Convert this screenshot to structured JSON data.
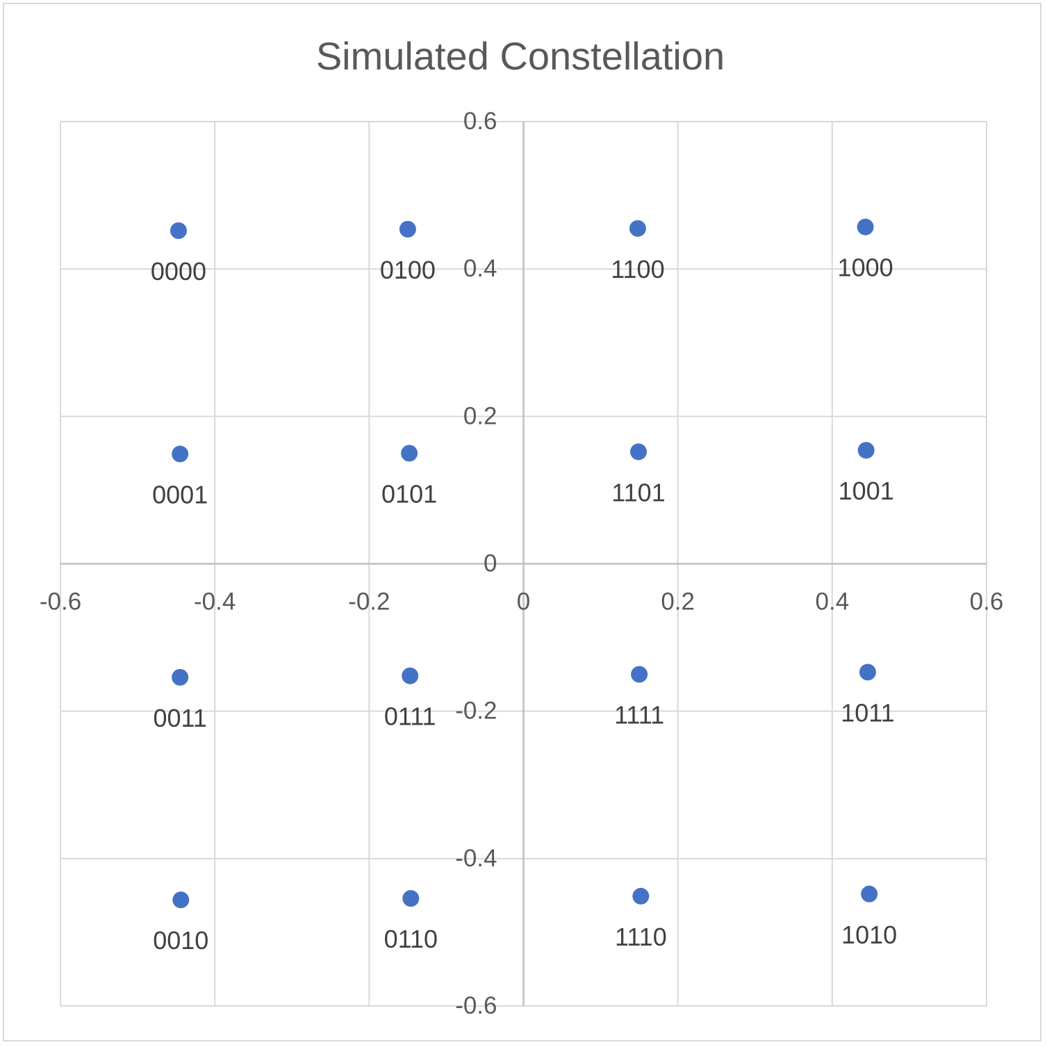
{
  "chart_data": {
    "type": "scatter",
    "title": "Simulated Constellation",
    "xlabel": "",
    "ylabel": "",
    "xlim": [
      -0.6,
      0.6
    ],
    "ylim": [
      -0.6,
      0.6
    ],
    "x_ticks": [
      "-0.6",
      "-0.4",
      "-0.2",
      "0",
      "0.2",
      "0.4",
      "0.6"
    ],
    "y_ticks": [
      "-0.6",
      "-0.4",
      "-0.2",
      "0",
      "0.2",
      "0.4",
      "0.6"
    ],
    "grid": true,
    "marker_color": "#4472C4",
    "points": [
      {
        "x": -0.447,
        "y": 0.452,
        "label": "0000"
      },
      {
        "x": -0.15,
        "y": 0.454,
        "label": "0100"
      },
      {
        "x": 0.148,
        "y": 0.455,
        "label": "1100"
      },
      {
        "x": 0.443,
        "y": 0.457,
        "label": "1000"
      },
      {
        "x": -0.445,
        "y": 0.149,
        "label": "0001"
      },
      {
        "x": -0.148,
        "y": 0.15,
        "label": "0101"
      },
      {
        "x": 0.149,
        "y": 0.152,
        "label": "1101"
      },
      {
        "x": 0.444,
        "y": 0.154,
        "label": "1001"
      },
      {
        "x": -0.445,
        "y": -0.154,
        "label": "0011"
      },
      {
        "x": -0.147,
        "y": -0.152,
        "label": "0111"
      },
      {
        "x": 0.15,
        "y": -0.15,
        "label": "1111"
      },
      {
        "x": 0.446,
        "y": -0.147,
        "label": "1011"
      },
      {
        "x": -0.444,
        "y": -0.456,
        "label": "0010"
      },
      {
        "x": -0.146,
        "y": -0.454,
        "label": "0110"
      },
      {
        "x": 0.152,
        "y": -0.451,
        "label": "1110"
      },
      {
        "x": 0.448,
        "y": -0.448,
        "label": "1010"
      }
    ]
  }
}
